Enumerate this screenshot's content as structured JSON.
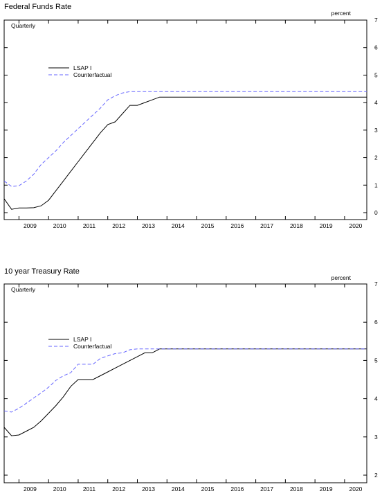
{
  "chart_data": [
    {
      "type": "line",
      "title": "Federal Funds Rate",
      "frequency_label": "Quarterly",
      "unit_label": "percent",
      "x_tick_labels": [
        "2009",
        "2010",
        "2011",
        "2012",
        "2013",
        "2014",
        "2015",
        "2016",
        "2017",
        "2018",
        "2019",
        "2020"
      ],
      "x_range": [
        2008.5,
        2020.75
      ],
      "ylim": [
        0,
        7
      ],
      "y_ticks": [
        0,
        1,
        2,
        3,
        4,
        5,
        6,
        7
      ],
      "legend": "top-left",
      "series": [
        {
          "name": "LSAP I",
          "color": "#000000",
          "style": "solid",
          "x": [
            2008.5,
            2008.75,
            2009.0,
            2009.25,
            2009.5,
            2009.75,
            2010.0,
            2010.25,
            2010.5,
            2010.75,
            2011.0,
            2011.25,
            2011.5,
            2011.75,
            2012.0,
            2012.25,
            2012.5,
            2012.75,
            2013.0,
            2013.25,
            2013.5,
            2013.75,
            2014.0,
            2014.25,
            2014.5,
            2014.75,
            2015.0,
            2016.0,
            2017.0,
            2018.0,
            2019.0,
            2020.0,
            2020.75
          ],
          "y": [
            0.5,
            0.12,
            0.17,
            0.17,
            0.18,
            0.25,
            0.45,
            0.8,
            1.15,
            1.5,
            1.85,
            2.2,
            2.55,
            2.9,
            3.2,
            3.3,
            3.6,
            3.9,
            3.9,
            4.0,
            4.1,
            4.2,
            4.2,
            4.2,
            4.2,
            4.2,
            4.2,
            4.2,
            4.2,
            4.2,
            4.2,
            4.2,
            4.2
          ]
        },
        {
          "name": "Counterfactual",
          "color": "#6666ff",
          "style": "dashed",
          "x": [
            2008.5,
            2008.75,
            2009.0,
            2009.25,
            2009.5,
            2009.75,
            2010.0,
            2010.25,
            2010.5,
            2010.75,
            2011.0,
            2011.25,
            2011.5,
            2011.75,
            2012.0,
            2012.25,
            2012.5,
            2012.75,
            2013.0,
            2014.0,
            2015.0,
            2016.0,
            2017.0,
            2018.0,
            2019.0,
            2020.0,
            2020.75
          ],
          "y": [
            1.15,
            0.95,
            0.98,
            1.15,
            1.4,
            1.75,
            2.0,
            2.25,
            2.55,
            2.8,
            3.05,
            3.3,
            3.55,
            3.8,
            4.1,
            4.25,
            4.35,
            4.4,
            4.4,
            4.4,
            4.4,
            4.4,
            4.4,
            4.4,
            4.4,
            4.4,
            4.4
          ]
        }
      ]
    },
    {
      "type": "line",
      "title": "10 year Treasury Rate",
      "frequency_label": "Quarterly",
      "unit_label": "percent",
      "x_tick_labels": [
        "2009",
        "2010",
        "2011",
        "2012",
        "2013",
        "2014",
        "2015",
        "2016",
        "2017",
        "2018",
        "2019",
        "2020"
      ],
      "x_range": [
        2008.5,
        2020.75
      ],
      "ylim": [
        2,
        7
      ],
      "y_ticks": [
        2,
        3,
        4,
        5,
        6,
        7
      ],
      "legend": "top-left",
      "series": [
        {
          "name": "LSAP I",
          "color": "#000000",
          "style": "solid",
          "x": [
            2008.5,
            2008.75,
            2009.0,
            2009.25,
            2009.5,
            2009.75,
            2010.0,
            2010.25,
            2010.5,
            2010.75,
            2011.0,
            2011.25,
            2011.5,
            2011.75,
            2012.0,
            2012.25,
            2012.5,
            2012.75,
            2013.0,
            2013.25,
            2013.5,
            2013.75,
            2014.0,
            2015.0,
            2016.0,
            2017.0,
            2018.0,
            2019.0,
            2020.0,
            2020.75
          ],
          "y": [
            3.25,
            3.03,
            3.05,
            3.15,
            3.25,
            3.42,
            3.62,
            3.82,
            4.05,
            4.32,
            4.5,
            4.5,
            4.5,
            4.6,
            4.7,
            4.8,
            4.9,
            5.0,
            5.1,
            5.2,
            5.2,
            5.3,
            5.3,
            5.3,
            5.3,
            5.3,
            5.3,
            5.3,
            5.3,
            5.3
          ]
        },
        {
          "name": "Counterfactual",
          "color": "#6666ff",
          "style": "dashed",
          "x": [
            2008.5,
            2008.75,
            2009.0,
            2009.25,
            2009.5,
            2009.75,
            2010.0,
            2010.25,
            2010.5,
            2010.75,
            2011.0,
            2011.25,
            2011.5,
            2011.75,
            2012.0,
            2012.25,
            2012.5,
            2012.75,
            2013.0,
            2013.25,
            2013.5,
            2013.75,
            2014.0,
            2015.0,
            2016.0,
            2017.0,
            2018.0,
            2019.0,
            2020.0,
            2020.75
          ],
          "y": [
            3.68,
            3.65,
            3.75,
            3.88,
            4.02,
            4.15,
            4.3,
            4.48,
            4.6,
            4.68,
            4.9,
            4.9,
            4.9,
            5.05,
            5.12,
            5.18,
            5.2,
            5.28,
            5.3,
            5.3,
            5.3,
            5.3,
            5.3,
            5.3,
            5.3,
            5.3,
            5.3,
            5.3,
            5.3,
            5.3
          ]
        }
      ]
    }
  ]
}
